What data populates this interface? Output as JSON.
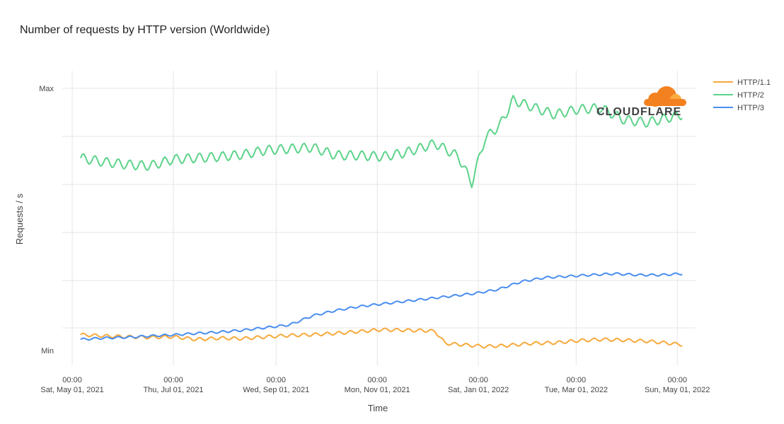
{
  "chart_data": {
    "type": "line",
    "title": "Number of requests by HTTP version (Worldwide)",
    "xlabel": "Time",
    "ylabel": "Requests / s",
    "y_tick_labels": [
      "Max",
      "Min"
    ],
    "x_ticks": [
      {
        "time": "00:00",
        "date": "Sat, May 01, 2021",
        "day": 0
      },
      {
        "time": "00:00",
        "date": "Thu, Jul 01, 2021",
        "day": 61
      },
      {
        "time": "00:00",
        "date": "Wed, Sep 01, 2021",
        "day": 123
      },
      {
        "time": "00:00",
        "date": "Mon, Nov 01, 2021",
        "day": 184
      },
      {
        "time": "00:00",
        "date": "Sat, Jan 01, 2022",
        "day": 245
      },
      {
        "time": "00:00",
        "date": "Tue, Mar 01, 2022",
        "day": 304
      },
      {
        "time": "00:00",
        "date": "Sun, May 01, 2022",
        "day": 365
      }
    ],
    "xlim": [
      "2021-04-25",
      "2022-05-12"
    ],
    "ylim": [
      0,
      1
    ],
    "grid": true,
    "legend_position": "top-right",
    "series": [
      {
        "name": "HTTP/1.1",
        "color": "#f6a93b",
        "x": [
          "2021-05-06",
          "2021-05-20",
          "2021-06-03",
          "2021-06-17",
          "2021-07-01",
          "2021-07-15",
          "2021-07-29",
          "2021-08-12",
          "2021-08-26",
          "2021-09-09",
          "2021-09-23",
          "2021-10-07",
          "2021-10-21",
          "2021-11-04",
          "2021-11-18",
          "2021-12-02",
          "2021-12-06",
          "2021-12-12",
          "2021-12-22",
          "2022-01-05",
          "2022-01-19",
          "2022-02-02",
          "2022-02-16",
          "2022-03-02",
          "2022-03-16",
          "2022-03-30",
          "2022-04-13",
          "2022-04-27",
          "2022-05-04"
        ],
        "y": [
          0.063,
          0.058,
          0.055,
          0.053,
          0.055,
          0.045,
          0.05,
          0.048,
          0.055,
          0.06,
          0.063,
          0.068,
          0.075,
          0.082,
          0.08,
          0.078,
          0.075,
          0.03,
          0.025,
          0.018,
          0.022,
          0.03,
          0.032,
          0.04,
          0.045,
          0.042,
          0.038,
          0.03,
          0.025
        ]
      },
      {
        "name": "HTTP/2",
        "color": "#5cd38a",
        "x": [
          "2021-05-06",
          "2021-05-20",
          "2021-06-03",
          "2021-06-17",
          "2021-07-01",
          "2021-07-15",
          "2021-07-29",
          "2021-08-12",
          "2021-08-26",
          "2021-09-09",
          "2021-09-23",
          "2021-10-07",
          "2021-10-21",
          "2021-11-04",
          "2021-11-18",
          "2021-11-28",
          "2021-12-06",
          "2021-12-20",
          "2021-12-28",
          "2022-01-05",
          "2022-01-14",
          "2022-01-22",
          "2022-02-02",
          "2022-02-16",
          "2022-03-02",
          "2022-03-16",
          "2022-03-30",
          "2022-04-13",
          "2022-04-27",
          "2022-05-04"
        ],
        "y": [
          0.735,
          0.72,
          0.71,
          0.705,
          0.73,
          0.735,
          0.74,
          0.748,
          0.765,
          0.77,
          0.775,
          0.745,
          0.745,
          0.74,
          0.755,
          0.775,
          0.79,
          0.74,
          0.64,
          0.81,
          0.86,
          0.955,
          0.93,
          0.9,
          0.92,
          0.925,
          0.88,
          0.87,
          0.89,
          0.9
        ]
      },
      {
        "name": "HTTP/3",
        "color": "#4a8ef0",
        "x": [
          "2021-05-06",
          "2021-05-20",
          "2021-06-03",
          "2021-06-17",
          "2021-07-01",
          "2021-07-15",
          "2021-07-29",
          "2021-08-12",
          "2021-08-26",
          "2021-09-09",
          "2021-09-23",
          "2021-10-07",
          "2021-10-21",
          "2021-11-04",
          "2021-11-18",
          "2021-12-02",
          "2021-12-16",
          "2021-12-30",
          "2022-01-13",
          "2022-01-27",
          "2022-02-10",
          "2022-02-24",
          "2022-03-10",
          "2022-03-24",
          "2022-04-07",
          "2022-04-21",
          "2022-05-04"
        ],
        "y": [
          0.045,
          0.05,
          0.053,
          0.058,
          0.062,
          0.068,
          0.073,
          0.08,
          0.09,
          0.1,
          0.135,
          0.155,
          0.17,
          0.18,
          0.19,
          0.2,
          0.21,
          0.22,
          0.235,
          0.265,
          0.28,
          0.285,
          0.29,
          0.295,
          0.29,
          0.29,
          0.295
        ]
      }
    ],
    "logo": "CLOUDFLARE"
  }
}
